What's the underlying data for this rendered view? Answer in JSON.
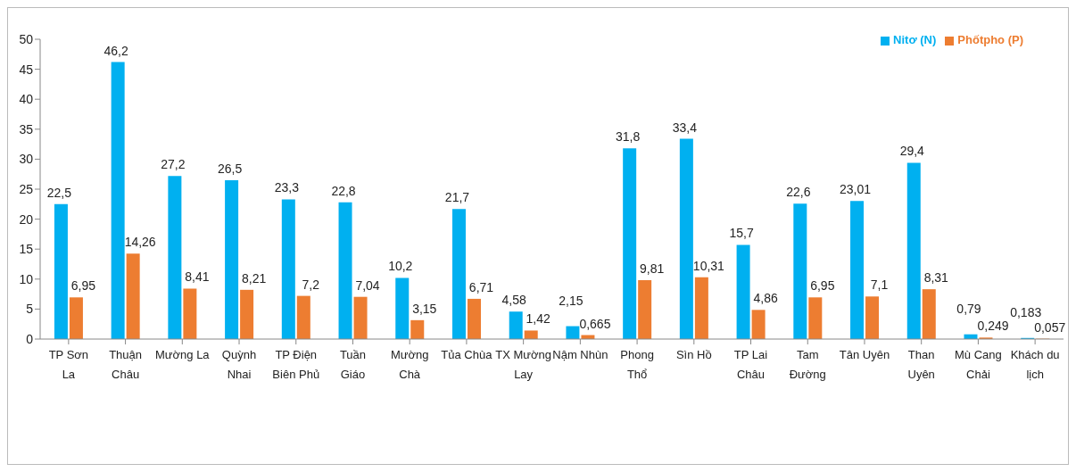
{
  "chart_data": {
    "type": "bar",
    "categories": [
      "TP Sơn La",
      "Thuận Châu",
      "Mường La",
      "Quỳnh Nhai",
      "TP Điện Biên Phủ",
      "Tuần Giáo",
      "Mường Chà",
      "Tủa Chùa",
      "TX Mường Lay",
      "Nậm Nhùn",
      "Phong Thổ",
      "Sìn Hồ",
      "TP Lai Châu",
      "Tam Đường",
      "Tân Uyên",
      "Than Uyên",
      "Mù Cang Chải",
      "Khách du lịch"
    ],
    "series": [
      {
        "name": "Nitơ (N)",
        "color": "#00b0f0",
        "values": [
          22.5,
          46.2,
          27.2,
          26.5,
          23.3,
          22.8,
          10.2,
          21.7,
          4.58,
          2.15,
          31.8,
          33.4,
          15.7,
          22.6,
          23.01,
          29.4,
          0.79,
          0.183
        ],
        "value_labels": [
          "22,5",
          "46,2",
          "27,2",
          "26,5",
          "23,3",
          "22,8",
          "10,2",
          "21,7",
          "4,58",
          "2,15",
          "31,8",
          "33,4",
          "15,7",
          "22,6",
          "23,01",
          "29,4",
          "0,79",
          "0,183"
        ]
      },
      {
        "name": "Phốtpho (P)",
        "color": "#ed7d31",
        "values": [
          6.95,
          14.26,
          8.41,
          8.21,
          7.2,
          7.04,
          3.15,
          6.71,
          1.42,
          0.665,
          9.81,
          10.31,
          4.86,
          6.95,
          7.1,
          8.31,
          0.249,
          0.057
        ],
        "value_labels": [
          "6,95",
          "14,26",
          "8,41",
          "8,21",
          "7,2",
          "7,04",
          "3,15",
          "6,71",
          "1,42",
          "0,665",
          "9,81",
          "10,31",
          "4,86",
          "6,95",
          "7,1",
          "8,31",
          "0,249",
          "0,057"
        ]
      }
    ],
    "ylim": [
      0,
      50
    ],
    "yticks": [
      0,
      5,
      10,
      15,
      20,
      25,
      30,
      35,
      40,
      45,
      50
    ],
    "grid": false,
    "legend": "top right"
  }
}
